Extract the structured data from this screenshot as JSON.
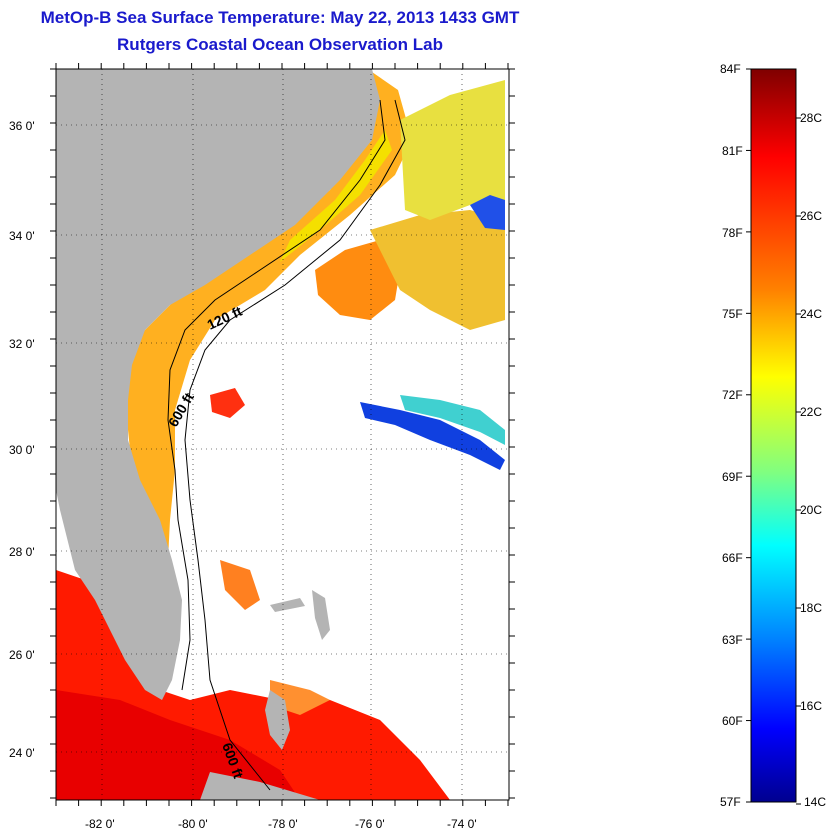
{
  "title": "MetOp-B Sea Surface Temperature:  May 22, 2013 1433 GMT",
  "subtitle": "Rutgers Coastal Ocean Observation Lab",
  "map": {
    "lat_labels": [
      "36 0'",
      "34 0'",
      "32 0'",
      "30 0'",
      "28 0'",
      "26 0'",
      "24 0'"
    ],
    "lon_labels": [
      "-82 0'",
      "-80 0'",
      "-78 0'",
      "-76 0'",
      "-74 0'"
    ],
    "contour_labels": [
      "120 ft",
      "600 ft",
      "600 ft"
    ],
    "land_color": "#b4b4b4"
  },
  "colorbar": {
    "fahrenheit": [
      "84F",
      "81F",
      "78F",
      "75F",
      "72F",
      "69F",
      "66F",
      "63F",
      "60F",
      "57F"
    ],
    "celsius": [
      "28C",
      "26C",
      "24C",
      "22C",
      "20C",
      "18C",
      "16C",
      "14C"
    ],
    "colors": [
      "#7f0000",
      "#ff0000",
      "#ff8000",
      "#ffff00",
      "#80ff80",
      "#00ffff",
      "#0080ff",
      "#0000ff",
      "#00008f"
    ]
  }
}
